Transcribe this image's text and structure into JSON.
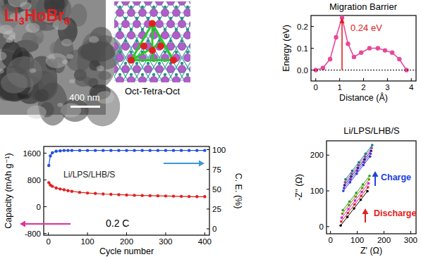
{
  "panels": {
    "tem": {
      "label": "Li3HoBr6",
      "scale_bar": "400 nm"
    },
    "structure": {
      "caption": "Oct-Tetra-Oct"
    }
  },
  "chart_data": [
    {
      "type": "line",
      "title": "Migration Barrier",
      "x_label": "Distance (Å)",
      "y_label": "Energy (eV)",
      "x": [
        0,
        0.3,
        0.6,
        0.85,
        1.1,
        1.35,
        1.6,
        1.9,
        2.25,
        2.6,
        2.9,
        3.2,
        3.5,
        3.8
      ],
      "series": [
        {
          "color": "#e8489a",
          "marker": "circle",
          "line_style": "solid",
          "values": [
            0,
            0.01,
            0.05,
            0.15,
            0.24,
            0.12,
            0.06,
            0.08,
            0.1,
            0.1,
            0.09,
            0.08,
            0.05,
            0
          ]
        }
      ],
      "xlim": [
        -0.2,
        4.2
      ],
      "ylim": [
        -0.05,
        0.25
      ],
      "xticks": [
        0,
        1,
        2,
        3,
        4
      ],
      "yticks": [
        {
          "value": 0,
          "label": "0.0"
        },
        0.1,
        0.2
      ],
      "annotations": [
        "0.24 eV"
      ],
      "grid": false
    },
    {
      "type": "line",
      "x_label": "Cycle number",
      "y_label": "Capacity (mAh g⁻¹)",
      "y2_label": "C. E. (%)",
      "x": [
        1,
        5,
        10,
        20,
        30,
        40,
        50,
        60,
        80,
        100,
        120,
        140,
        160,
        180,
        200,
        220,
        240,
        260,
        280,
        300,
        320,
        340,
        360,
        380,
        400
      ],
      "series": [
        {
          "color": "#e02020",
          "marker": "circle",
          "line_style": "solid",
          "values": [
            720,
            650,
            610,
            560,
            530,
            505,
            480,
            460,
            430,
            410,
            395,
            380,
            370,
            360,
            350,
            340,
            335,
            330,
            325,
            320,
            315,
            310,
            305,
            300,
            300
          ]
        },
        {
          "color": "#2050e0",
          "marker": "circle",
          "line_style": "solid",
          "axis": "y2",
          "values": [
            80,
            92,
            96,
            98,
            98.5,
            99,
            99,
            99,
            99,
            99,
            99,
            99,
            99,
            99,
            99,
            99,
            99,
            99,
            99,
            99,
            99,
            99,
            99,
            99,
            99
          ]
        }
      ],
      "xlim": [
        -12,
        412
      ],
      "ylim": [
        -850,
        1800
      ],
      "y2lim": [
        -8,
        104
      ],
      "xticks": [
        0,
        100,
        200,
        300,
        400
      ],
      "yticks": [
        -800,
        0,
        800,
        1600
      ],
      "y2ticks": [
        0,
        25,
        50,
        75,
        100
      ],
      "annotations": [
        "Li/LPS/LHB/S",
        "0.2 C"
      ],
      "grid": false
    },
    {
      "type": "line",
      "title": "Li/LPS/LHB/S",
      "x_label": "Z' (Ω)",
      "y_label": "-Z'' (Ω)",
      "series": [
        {
          "color": "#000000",
          "marker": "circle",
          "line_style": "solid",
          "x": [
            38,
            63,
            88,
            113,
            138
          ],
          "values": [
            3,
            27,
            51,
            75,
            99
          ]
        },
        {
          "color": "#e02020",
          "marker": "circle",
          "line_style": "solid",
          "x": [
            40,
            65,
            90,
            115,
            140
          ],
          "values": [
            14,
            38,
            62,
            86,
            110
          ]
        },
        {
          "color": "#d020d0",
          "marker": "circle",
          "line_style": "solid",
          "x": [
            42,
            67,
            92,
            117,
            142
          ],
          "values": [
            25,
            49,
            73,
            97,
            121
          ]
        },
        {
          "color": "#808000",
          "marker": "circle",
          "line_style": "solid",
          "x": [
            44,
            69,
            94,
            119,
            144
          ],
          "values": [
            36,
            60,
            84,
            108,
            132
          ]
        },
        {
          "color": "#20a020",
          "marker": "circle",
          "line_style": "solid",
          "x": [
            46,
            71,
            96,
            121,
            146
          ],
          "values": [
            46,
            70,
            94,
            118,
            142
          ]
        },
        {
          "color": "#2040e0",
          "marker": "circle",
          "line_style": "solid",
          "x": [
            48,
            73,
            98,
            123,
            148
          ],
          "values": [
            100,
            124,
            148,
            172,
            196
          ]
        },
        {
          "color": "#8020c0",
          "marker": "circle",
          "line_style": "solid",
          "x": [
            50,
            75,
            100,
            125,
            150
          ],
          "values": [
            108,
            132,
            156,
            180,
            204
          ]
        },
        {
          "color": "#202080",
          "marker": "circle",
          "line_style": "solid",
          "x": [
            52,
            77,
            102,
            127,
            152
          ],
          "values": [
            116,
            140,
            164,
            188,
            212
          ]
        },
        {
          "color": "#a040a0",
          "marker": "circle",
          "line_style": "solid",
          "x": [
            54,
            79,
            104,
            129,
            154
          ],
          "values": [
            124,
            148,
            172,
            196,
            220
          ]
        },
        {
          "color": "#008080",
          "marker": "circle",
          "line_style": "solid",
          "x": [
            56,
            81,
            106,
            131,
            156
          ],
          "values": [
            132,
            156,
            180,
            204,
            228
          ]
        }
      ],
      "xlim": [
        -15,
        320
      ],
      "ylim": [
        -20,
        240
      ],
      "xticks": [
        0,
        100,
        200,
        300
      ],
      "yticks": [
        0,
        100,
        200
      ],
      "annotations": [
        "Charge",
        "Discharge"
      ],
      "grid": false
    }
  ]
}
